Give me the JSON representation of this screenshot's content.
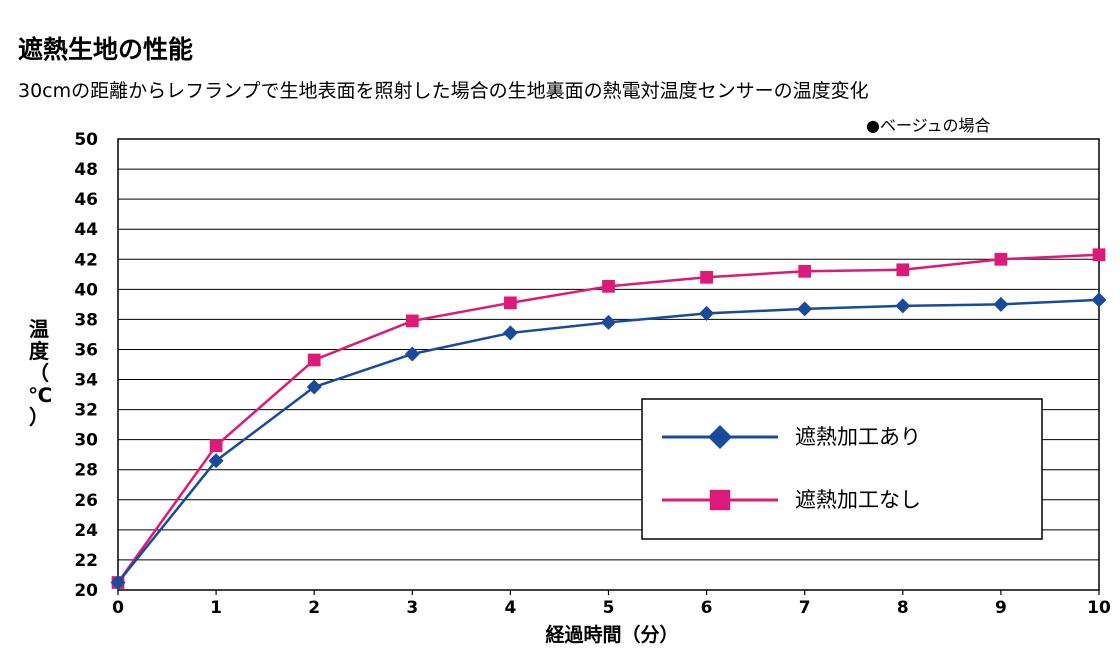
{
  "title": "遮熱生地の性能",
  "subtitle": "30cmの距離からレフランプで生地表面を照射した場合の生地裏面の熱電対温度センサーの温度変化",
  "note": "●ベージュの場合",
  "chart_data": {
    "type": "line",
    "ylabel": [
      "温",
      "度",
      "（",
      "℃",
      "）"
    ],
    "xlabel": "経過時間（分）",
    "x": [
      0,
      1,
      2,
      3,
      4,
      5,
      6,
      7,
      8,
      9,
      10
    ],
    "xlim": [
      0,
      10
    ],
    "ylim": [
      20,
      50
    ],
    "yticks": [
      20,
      22,
      24,
      26,
      28,
      30,
      32,
      34,
      36,
      38,
      40,
      42,
      44,
      46,
      48,
      50
    ],
    "grid": true,
    "legend_position": "bottom-right",
    "series": [
      {
        "name": "遮熱加工あり",
        "color": "#1a4a9a",
        "marker": "diamond",
        "values": [
          20.5,
          28.6,
          33.5,
          35.7,
          37.1,
          37.8,
          38.4,
          38.7,
          38.9,
          39.0,
          39.3
        ]
      },
      {
        "name": "遮熱加工なし",
        "color": "#dd1a77",
        "marker": "square",
        "values": [
          20.5,
          29.6,
          35.3,
          37.9,
          39.1,
          40.2,
          40.8,
          41.2,
          41.3,
          42.0,
          42.3
        ]
      }
    ]
  }
}
